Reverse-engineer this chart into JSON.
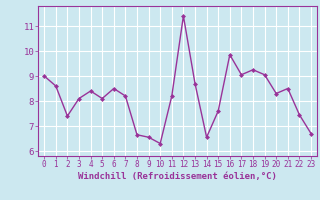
{
  "x": [
    0,
    1,
    2,
    3,
    4,
    5,
    6,
    7,
    8,
    9,
    10,
    11,
    12,
    13,
    14,
    15,
    16,
    17,
    18,
    19,
    20,
    21,
    22,
    23
  ],
  "y": [
    9.0,
    8.6,
    7.4,
    8.1,
    8.4,
    8.1,
    8.5,
    8.2,
    6.65,
    6.55,
    6.3,
    8.2,
    11.4,
    8.7,
    6.55,
    7.6,
    9.85,
    9.05,
    9.25,
    9.05,
    8.3,
    8.5,
    7.45,
    6.7
  ],
  "line_color": "#993399",
  "marker": "D",
  "markersize": 2.0,
  "linewidth": 1.0,
  "bg_color": "#cce8f0",
  "grid_color": "#ffffff",
  "tick_color": "#993399",
  "label_color": "#993399",
  "xlabel": "Windchill (Refroidissement éolien,°C)",
  "xlabel_fontsize": 6.5,
  "ylim": [
    5.8,
    11.8
  ],
  "xlim": [
    -0.5,
    23.5
  ],
  "xtick_fontsize": 5.5,
  "ytick_fontsize": 6.5
}
